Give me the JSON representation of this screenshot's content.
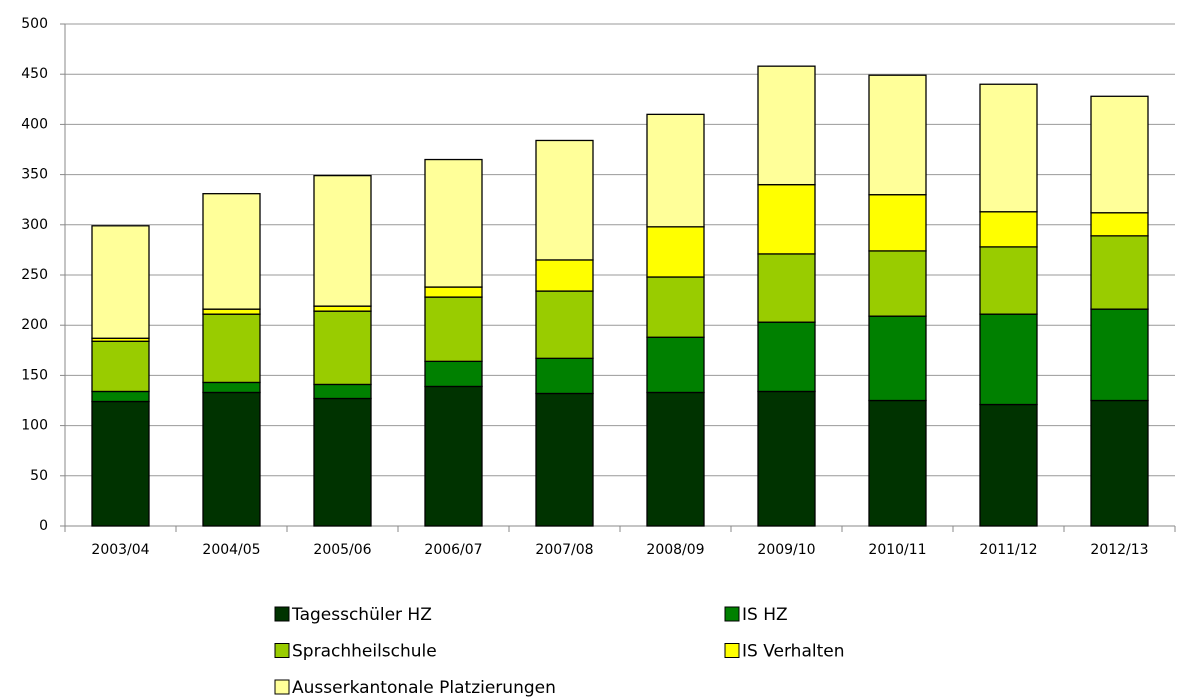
{
  "chart_data": {
    "type": "stacked_bar",
    "categories": [
      "2003/04",
      "2004/05",
      "2005/06",
      "2006/07",
      "2007/08",
      "2008/09",
      "2009/10",
      "2010/11",
      "2011/12",
      "2012/13"
    ],
    "series": [
      {
        "name": "Tagesschüler HZ",
        "color": "#003300",
        "values": [
          124,
          133,
          127,
          139,
          132,
          133,
          134,
          125,
          121,
          125
        ]
      },
      {
        "name": "IS HZ",
        "color": "#008000",
        "values": [
          10,
          10,
          14,
          25,
          35,
          55,
          69,
          84,
          90,
          91
        ]
      },
      {
        "name": "Sprachheilschule",
        "color": "#99cc00",
        "values": [
          50,
          68,
          73,
          64,
          67,
          60,
          68,
          65,
          67,
          73
        ]
      },
      {
        "name": "IS Verhalten",
        "color": "#ffff00",
        "values": [
          3,
          5,
          5,
          10,
          31,
          50,
          69,
          56,
          35,
          23
        ]
      },
      {
        "name": "Ausserkantonale Platzierungen",
        "color": "#ffff99",
        "values": [
          112,
          115,
          130,
          127,
          119,
          112,
          118,
          119,
          127,
          116
        ]
      }
    ],
    "ylim": [
      0,
      500
    ],
    "yticks": [
      0,
      50,
      100,
      150,
      200,
      250,
      300,
      350,
      400,
      450,
      500
    ],
    "grid": true
  }
}
